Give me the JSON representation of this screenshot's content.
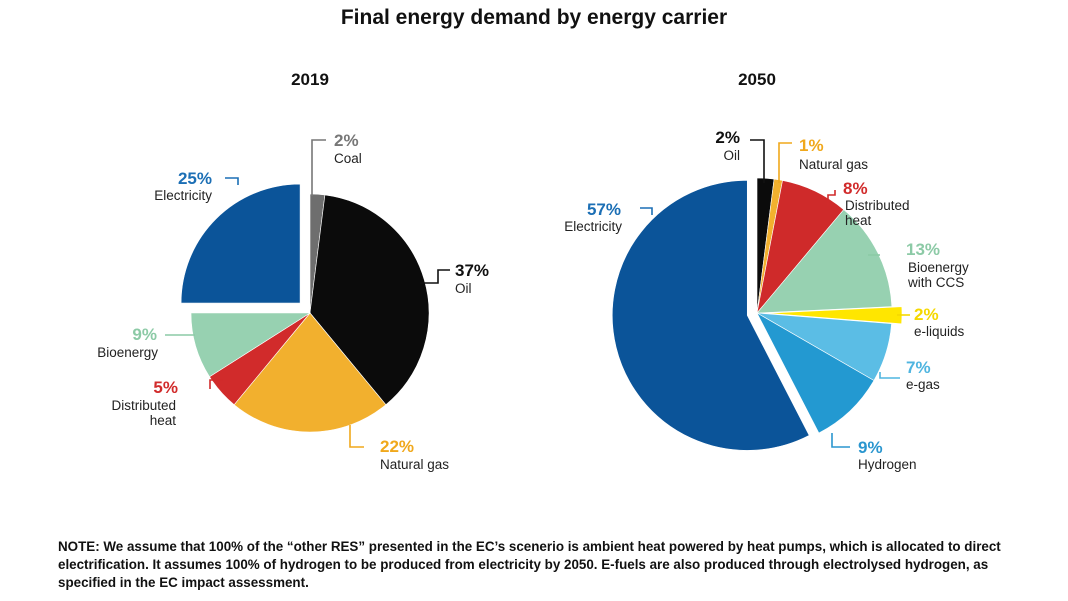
{
  "title": "Final energy demand by energy carrier",
  "note": "NOTE: We assume that 100% of the “other RES” presented in the EC’s scenerio is ambient heat powered by heat pumps, which is allocated to direct electrification. It assumes 100% of hydrogen to be produced from electricity by 2050. E-fuels are also produced through electrolysed hydrogen, as specified in the EC impact assessment.",
  "chart_data": [
    {
      "type": "pie",
      "title": "2019",
      "unit": "%",
      "slices": [
        {
          "label": "Coal",
          "value": 2,
          "pct_label": "2%",
          "color": "#6e6e6e",
          "pct_color": "#777777"
        },
        {
          "label": "Oil",
          "value": 37,
          "pct_label": "37%",
          "color": "#0b0b0b",
          "pct_color": "#111111"
        },
        {
          "label": "Natural gas",
          "value": 22,
          "pct_label": "22%",
          "color": "#f2b02e",
          "pct_color": "#f0a81c"
        },
        {
          "label": "Distributed heat",
          "value": 5,
          "pct_label": "5%",
          "color": "#d12b2b",
          "pct_color": "#d12b2b"
        },
        {
          "label": "Bioenergy",
          "value": 9,
          "pct_label": "9%",
          "color": "#97d1b1",
          "pct_color": "#8ccaa6"
        },
        {
          "label": "Electricity",
          "value": 25,
          "pct_label": "25%",
          "color": "#0b5499",
          "pct_color": "#1c6fb5",
          "exploded": true
        }
      ]
    },
    {
      "type": "pie",
      "title": "2050",
      "unit": "%",
      "slices": [
        {
          "label": "Oil",
          "value": 2,
          "pct_label": "2%",
          "color": "#0b0b0b",
          "pct_color": "#111111"
        },
        {
          "label": "Natural gas",
          "value": 1,
          "pct_label": "1%",
          "color": "#f2b02e",
          "pct_color": "#f0a81c"
        },
        {
          "label": "Distributed heat",
          "value": 8,
          "pct_label": "8%",
          "color": "#cf2a2a",
          "pct_color": "#d12b2b"
        },
        {
          "label": "Bioenergy with CCS",
          "value": 13,
          "pct_label": "13%",
          "color": "#97d1b1",
          "pct_color": "#8ccaa6"
        },
        {
          "label": "e-liquids",
          "value": 2,
          "pct_label": "2%",
          "color": "#ffe600",
          "pct_color": "#f5d800",
          "exploded": true
        },
        {
          "label": "e-gas",
          "value": 7,
          "pct_label": "7%",
          "color": "#5bbde5",
          "pct_color": "#4fb5e0"
        },
        {
          "label": "Hydrogen",
          "value": 9,
          "pct_label": "9%",
          "color": "#2399d1",
          "pct_color": "#2a96cf"
        },
        {
          "label": "Electricity",
          "value": 57,
          "pct_label": "57%",
          "color": "#0b5499",
          "pct_color": "#1c6fb5",
          "exploded": true
        }
      ]
    }
  ]
}
